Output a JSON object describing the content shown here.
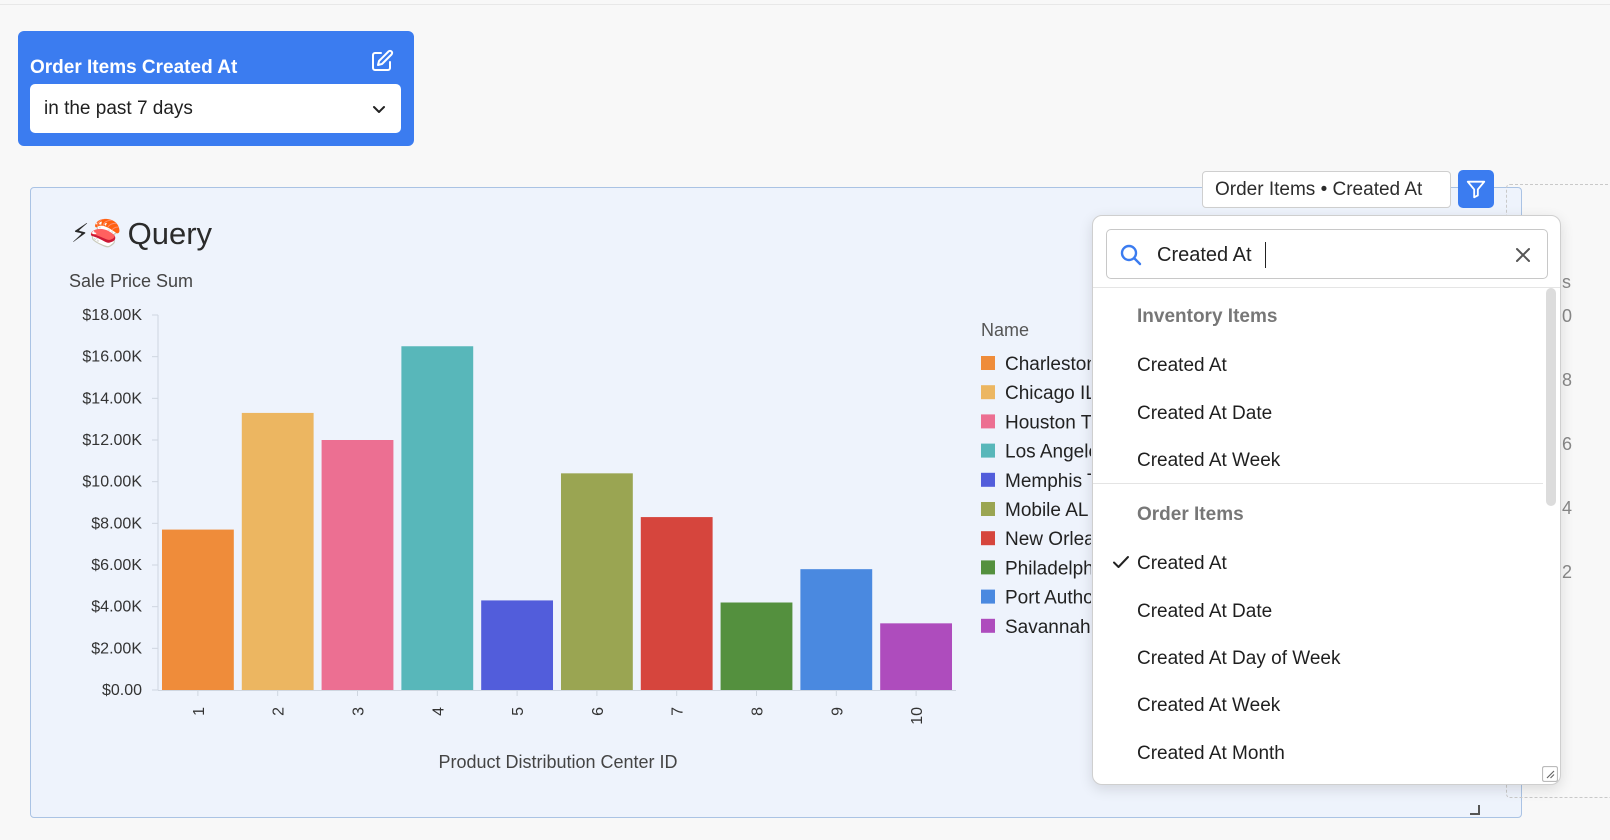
{
  "filter_widget": {
    "title": "Order Items Created At",
    "selected_value": "in the past 7 days"
  },
  "question": {
    "title": "Query",
    "title_emoji": "⚡🍣"
  },
  "filter_badge": {
    "label": "Order Items • Created At"
  },
  "chart_data": {
    "type": "bar",
    "ylabel": "Sale Price Sum",
    "xlabel": "Product Distribution Center ID",
    "categories": [
      "1",
      "2",
      "3",
      "4",
      "5",
      "6",
      "7",
      "8",
      "9",
      "10"
    ],
    "values": [
      7700,
      13300,
      12000,
      16500,
      4300,
      10400,
      8300,
      4200,
      5800,
      3200
    ],
    "colors": [
      "#ef8c3a",
      "#ecb661",
      "#ec6f92",
      "#58b7ba",
      "#525ddb",
      "#9aa552",
      "#d6453d",
      "#54903e",
      "#4a89e0",
      "#ae4cbd"
    ],
    "ylim": [
      0,
      18000
    ],
    "yticks": [
      "$0.00",
      "$2.00K",
      "$4.00K",
      "$6.00K",
      "$8.00K",
      "$10.00K",
      "$12.00K",
      "$14.00K",
      "$16.00K",
      "$18.00K"
    ],
    "legend_title": "Name",
    "legend": [
      "Charleston",
      "Chicago IL",
      "Houston TX",
      "Los Angeles",
      "Memphis TN",
      "Mobile AL",
      "New Orleans",
      "Philadelphia",
      "Port Authority",
      "Savannah"
    ]
  },
  "dropdown": {
    "search_value": "Created At",
    "groups": [
      {
        "header": "Inventory Items",
        "options": [
          "Created At",
          "Created At Date",
          "Created At Week"
        ]
      },
      {
        "header": "Order Items",
        "options": [
          "Created At",
          "Created At Date",
          "Created At Day of Week",
          "Created At Week",
          "Created At Month"
        ]
      }
    ]
  },
  "edge_texts": [
    "s",
    "0",
    "8",
    "6",
    "4",
    "2"
  ]
}
